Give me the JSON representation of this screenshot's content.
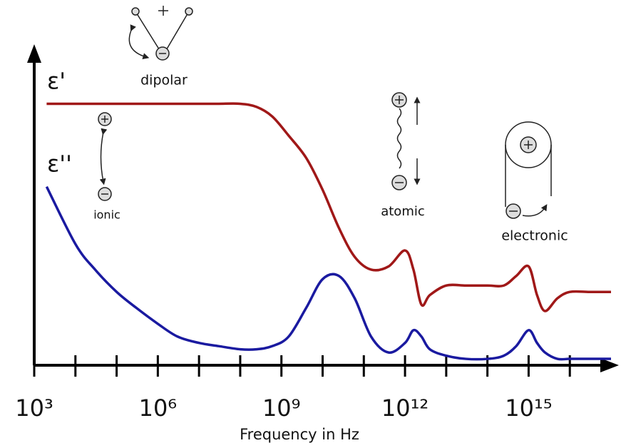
{
  "chart_data": {
    "type": "line",
    "xlabel": "Frequency in Hz",
    "xlog": true,
    "xlim": [
      1000.0,
      1e+17
    ],
    "xticks": [
      {
        "value": 1000.0,
        "label": "10³"
      },
      {
        "value": 1000000.0,
        "label": "10⁶"
      },
      {
        "value": 1000000000.0,
        "label": "10⁹"
      },
      {
        "value": 1000000000000.0,
        "label": "10¹²"
      },
      {
        "value": 1000000000000000.0,
        "label": "10¹⁵"
      }
    ],
    "xminorticks": [
      10000.0,
      100000.0,
      10000000.0,
      100000000.0,
      10000000000.0,
      100000000000.0,
      10000000000000.0,
      100000000000000.0,
      1e+16
    ],
    "ylim": [
      0,
      1
    ],
    "x": [
      2000.0,
      10000.0,
      30000.0,
      100000.0,
      300000.0,
      1000000.0,
      3000000.0,
      10000000.0,
      30000000.0,
      100000000.0,
      250000000.0,
      600000000.0,
      1500000000.0,
      4000000000.0,
      10000000000.0,
      25000000000.0,
      60000000000.0,
      150000000000.0,
      400000000000.0,
      1000000000000.0,
      1600000000000.0,
      2500000000000.0,
      4000000000000.0,
      10000000000000.0,
      30000000000000.0,
      100000000000000.0,
      250000000000000.0,
      500000000000000.0,
      1000000000000000.0,
      1600000000000000.0,
      2500000000000000.0,
      5000000000000000.0,
      1e+16,
      3e+16,
      1e+17
    ],
    "series": [
      {
        "name": "ε'",
        "color": "#a01818",
        "values": [
          0.82,
          0.82,
          0.82,
          0.82,
          0.82,
          0.82,
          0.82,
          0.82,
          0.82,
          0.82,
          0.81,
          0.78,
          0.72,
          0.65,
          0.55,
          0.43,
          0.34,
          0.3,
          0.31,
          0.36,
          0.3,
          0.19,
          0.22,
          0.25,
          0.25,
          0.25,
          0.25,
          0.28,
          0.31,
          0.22,
          0.17,
          0.21,
          0.23,
          0.23,
          0.23
        ]
      },
      {
        "name": "ε''",
        "color": "#1a1aa0",
        "values": [
          0.56,
          0.38,
          0.3,
          0.23,
          0.18,
          0.13,
          0.09,
          0.07,
          0.06,
          0.05,
          0.05,
          0.06,
          0.09,
          0.18,
          0.27,
          0.28,
          0.21,
          0.09,
          0.04,
          0.07,
          0.11,
          0.09,
          0.05,
          0.03,
          0.02,
          0.02,
          0.03,
          0.06,
          0.11,
          0.07,
          0.04,
          0.02,
          0.02,
          0.02,
          0.02
        ]
      }
    ],
    "annotations": {
      "dipolar": "dipolar",
      "ionic": "ionic",
      "atomic": "atomic",
      "electronic": "electronic"
    }
  }
}
